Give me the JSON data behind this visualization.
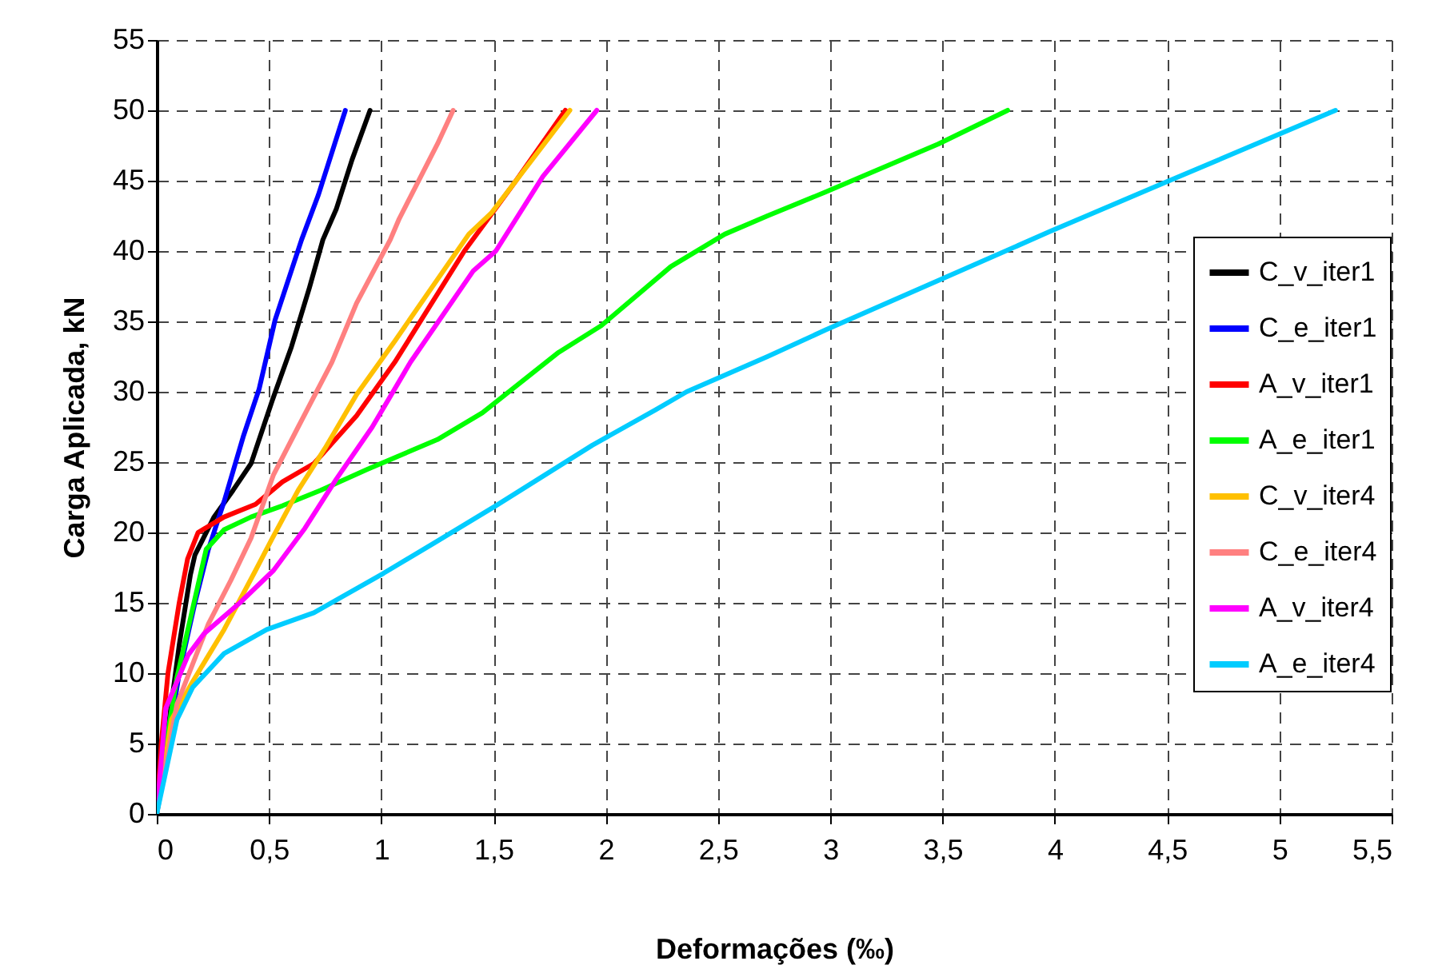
{
  "chart_data": {
    "type": "line",
    "xlabel": "Deformações (‰)",
    "ylabel": "Carga Aplicada, kN",
    "xlim": [
      0,
      5.5
    ],
    "xticks": [
      0,
      {
        "value": 0.5,
        "label": "0,5"
      },
      1,
      {
        "value": 1.5,
        "label": "1,5"
      },
      2,
      {
        "value": 2.5,
        "label": "2,5"
      },
      3,
      {
        "value": 3.5,
        "label": "3,5"
      },
      4,
      {
        "value": 4.5,
        "label": "4,5"
      },
      5,
      {
        "value": 5.5,
        "label": "5,5"
      }
    ],
    "ylim": [
      0,
      55
    ],
    "yticks": [
      0,
      5,
      10,
      15,
      20,
      25,
      30,
      35,
      40,
      45,
      50,
      55
    ],
    "grid": true,
    "legend": "right",
    "line_style": "solid",
    "series": [
      {
        "name": "C_v_iter1",
        "color": "#000000",
        "x": [
          0,
          0.05,
          0.1,
          0.15,
          0.17,
          0.255,
          0.34,
          0.42,
          0.515,
          0.6,
          0.68,
          0.74,
          0.8,
          0.87,
          0.95
        ],
        "values": [
          0,
          6,
          12,
          17,
          18.4,
          21.1,
          23,
          24.9,
          29.4,
          33.2,
          37.4,
          40.8,
          43,
          46.5,
          50
        ]
      },
      {
        "name": "C_e_iter1",
        "color": "#0000ff",
        "x": [
          0,
          0.05,
          0.1,
          0.17,
          0.23,
          0.3,
          0.385,
          0.456,
          0.527,
          0.645,
          0.72,
          0.78,
          0.84
        ],
        "values": [
          0,
          5,
          10,
          15,
          18.8,
          22.2,
          26.8,
          30.2,
          35.1,
          40.8,
          44,
          47,
          50
        ]
      },
      {
        "name": "A_v_iter1",
        "color": "#ff0000",
        "x": [
          0,
          0.02,
          0.05,
          0.1,
          0.137,
          0.184,
          0.3,
          0.44,
          0.56,
          0.7,
          0.89,
          1.06,
          1.37,
          1.6,
          1.82
        ],
        "values": [
          0,
          5,
          10,
          15,
          18.1,
          20,
          21.1,
          22,
          23.6,
          24.9,
          28.3,
          32.1,
          40,
          45,
          50
        ]
      },
      {
        "name": "A_e_iter1",
        "color": "#00ff00",
        "x": [
          0,
          0.02,
          0.09,
          0.22,
          0.3,
          0.42,
          0.56,
          0.73,
          0.94,
          1.25,
          1.45,
          1.79,
          1.98,
          2.29,
          2.53,
          2.72,
          2.98,
          3.48,
          3.79
        ],
        "values": [
          0,
          2.9,
          9.7,
          18.8,
          20.2,
          21.1,
          21.9,
          23,
          24.5,
          26.6,
          28.5,
          32.8,
          34.7,
          38.9,
          41.2,
          42.5,
          44.2,
          47.6,
          50
        ]
      },
      {
        "name": "C_v_iter4",
        "color": "#ffc000",
        "x": [
          0,
          0.066,
          0.16,
          0.3,
          0.44,
          0.515,
          0.63,
          0.75,
          0.89,
          1.06,
          1.39,
          1.49,
          1.84
        ],
        "values": [
          0,
          6.7,
          9.4,
          13.1,
          17.3,
          19.6,
          23,
          26,
          29.8,
          33.6,
          41.2,
          42.7,
          50
        ]
      },
      {
        "name": "C_e_iter4",
        "color": "#ff8080",
        "x": [
          0,
          0.09,
          0.23,
          0.33,
          0.42,
          0.52,
          0.63,
          0.78,
          0.89,
          1.04,
          1.08,
          1.25,
          1.32
        ],
        "values": [
          0,
          7.8,
          13.5,
          16.6,
          19.6,
          24.1,
          27.5,
          32.1,
          36.3,
          40.8,
          42.3,
          47.6,
          50
        ]
      },
      {
        "name": "A_v_iter4",
        "color": "#ff00ff",
        "x": [
          0,
          0.04,
          0.14,
          0.21,
          0.37,
          0.52,
          0.66,
          0.8,
          0.96,
          1.13,
          1.41,
          1.51,
          1.72,
          1.96
        ],
        "values": [
          0,
          7.5,
          11.3,
          12.8,
          15,
          17.3,
          20.3,
          23.8,
          27.5,
          32.1,
          38.6,
          40,
          45.3,
          50
        ]
      },
      {
        "name": "A_e_iter4",
        "color": "#00ccff",
        "x": [
          0,
          0.09,
          0.16,
          0.3,
          0.49,
          0.7,
          1.01,
          1.23,
          1.51,
          1.94,
          2.22,
          2.36,
          2.72,
          2.98,
          3.98,
          4.48,
          5.25
        ],
        "values": [
          0,
          6.7,
          9,
          11.4,
          13.1,
          14.3,
          17.1,
          19.2,
          21.9,
          26.2,
          28.7,
          30,
          32.5,
          34.4,
          41.4,
          44.8,
          50
        ]
      }
    ]
  }
}
